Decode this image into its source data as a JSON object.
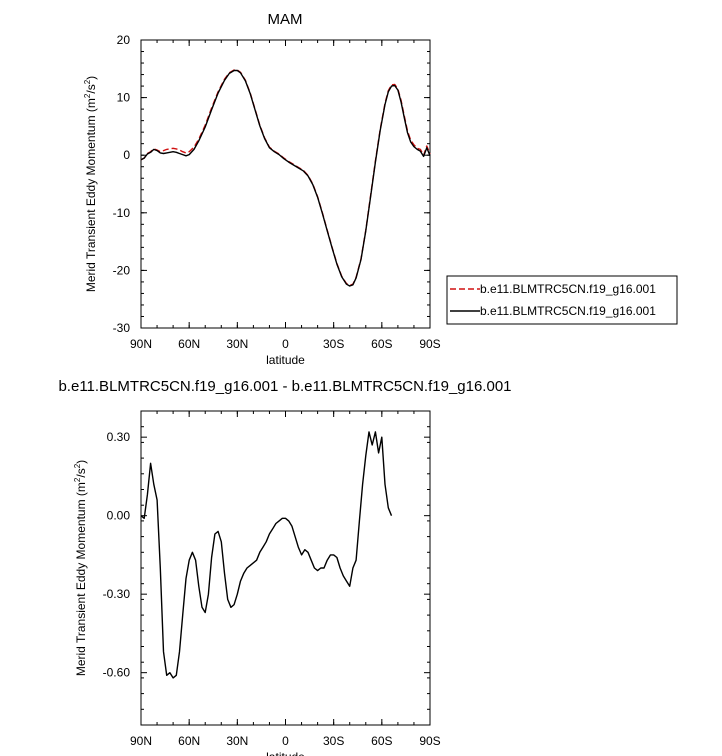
{
  "chart_data": [
    {
      "type": "line",
      "title": "MAM",
      "xlabel": "latitude",
      "ylabel": "Merid Transient Eddy Momentum (m",
      "ylabel_unit_tail": "/s",
      "ylabel_close": ")",
      "ylabel_sup": "2",
      "xlim": [
        90,
        -90
      ],
      "ylim": [
        -30,
        20
      ],
      "yticks": [
        {
          "v": 20,
          "label": "20"
        },
        {
          "v": 10,
          "label": "10"
        },
        {
          "v": 0,
          "label": "0"
        },
        {
          "v": -10,
          "label": "-10"
        },
        {
          "v": -20,
          "label": "-20"
        },
        {
          "v": -30,
          "label": "-30"
        }
      ],
      "xticks": [
        {
          "v": 90,
          "label": "90N"
        },
        {
          "v": 60,
          "label": "60N"
        },
        {
          "v": 30,
          "label": "30N"
        },
        {
          "v": 0,
          "label": "0"
        },
        {
          "v": -30,
          "label": "30S"
        },
        {
          "v": -60,
          "label": "60S"
        },
        {
          "v": -90,
          "label": "90S"
        }
      ],
      "legend_position": "right",
      "series": [
        {
          "name": "b.e11.BLMTRC5CN.f19_g16.001",
          "color": "#d01010",
          "dash": "dashed",
          "points": [
            [
              90,
              -0.8
            ],
            [
              88,
              -0.5
            ],
            [
              86,
              0.3
            ],
            [
              84,
              0.6
            ],
            [
              82,
              1.1
            ],
            [
              80,
              0.9
            ],
            [
              78,
              0.6
            ],
            [
              76,
              0.8
            ],
            [
              74,
              1.0
            ],
            [
              72,
              1.1
            ],
            [
              70,
              1.2
            ],
            [
              68,
              1.1
            ],
            [
              66,
              0.9
            ],
            [
              64,
              0.6
            ],
            [
              62,
              0.4
            ],
            [
              60,
              0.6
            ],
            [
              57,
              1.4
            ],
            [
              54,
              2.8
            ],
            [
              50,
              5.2
            ],
            [
              46,
              8.2
            ],
            [
              42,
              11.0
            ],
            [
              38,
              13.2
            ],
            [
              35,
              14.3
            ],
            [
              32,
              14.8
            ],
            [
              30,
              14.8
            ],
            [
              28,
              14.4
            ],
            [
              25,
              13.0
            ],
            [
              22,
              10.8
            ],
            [
              19,
              8.0
            ],
            [
              16,
              5.2
            ],
            [
              13,
              3.0
            ],
            [
              10,
              1.4
            ],
            [
              7,
              0.7
            ],
            [
              4,
              0.2
            ],
            [
              1,
              -0.5
            ],
            [
              -2,
              -1.1
            ],
            [
              -5,
              -1.6
            ],
            [
              -8,
              -2.1
            ],
            [
              -11,
              -2.6
            ],
            [
              -14,
              -3.5
            ],
            [
              -17,
              -5.0
            ],
            [
              -20,
              -7.2
            ],
            [
              -23,
              -10.0
            ],
            [
              -26,
              -13.0
            ],
            [
              -29,
              -16.0
            ],
            [
              -32,
              -18.8
            ],
            [
              -35,
              -21.0
            ],
            [
              -38,
              -22.3
            ],
            [
              -40,
              -22.6
            ],
            [
              -42,
              -22.4
            ],
            [
              -44,
              -21.2
            ],
            [
              -47,
              -18.0
            ],
            [
              -50,
              -13.0
            ],
            [
              -53,
              -7.0
            ],
            [
              -56,
              -1.0
            ],
            [
              -59,
              4.5
            ],
            [
              -62,
              9.0
            ],
            [
              -64,
              11.2
            ],
            [
              -66,
              12.2
            ],
            [
              -68,
              12.3
            ],
            [
              -70,
              11.5
            ],
            [
              -72,
              9.5
            ],
            [
              -74,
              6.8
            ],
            [
              -76,
              4.2
            ],
            [
              -78,
              2.6
            ],
            [
              -80,
              1.8
            ],
            [
              -82,
              1.2
            ],
            [
              -84,
              1.0
            ],
            [
              -86,
              0.0
            ],
            [
              -88,
              1.6
            ],
            [
              -90,
              0.2
            ]
          ]
        },
        {
          "name": "b.e11.BLMTRC5CN.f19_g16.001",
          "color": "#000000",
          "dash": "solid",
          "points": [
            [
              90,
              -0.8
            ],
            [
              88,
              -0.5
            ],
            [
              86,
              0.2
            ],
            [
              84,
              0.5
            ],
            [
              82,
              1.0
            ],
            [
              80,
              0.8
            ],
            [
              78,
              0.4
            ],
            [
              76,
              0.3
            ],
            [
              74,
              0.4
            ],
            [
              72,
              0.5
            ],
            [
              70,
              0.6
            ],
            [
              68,
              0.5
            ],
            [
              66,
              0.3
            ],
            [
              64,
              0.1
            ],
            [
              62,
              -0.1
            ],
            [
              60,
              0.1
            ],
            [
              57,
              1.0
            ],
            [
              54,
              2.5
            ],
            [
              50,
              4.9
            ],
            [
              46,
              7.9
            ],
            [
              42,
              10.8
            ],
            [
              38,
              13.0
            ],
            [
              35,
              14.2
            ],
            [
              32,
              14.7
            ],
            [
              30,
              14.7
            ],
            [
              28,
              14.3
            ],
            [
              25,
              12.9
            ],
            [
              22,
              10.7
            ],
            [
              19,
              7.9
            ],
            [
              16,
              5.1
            ],
            [
              13,
              2.9
            ],
            [
              10,
              1.3
            ],
            [
              7,
              0.6
            ],
            [
              4,
              0.1
            ],
            [
              1,
              -0.6
            ],
            [
              -2,
              -1.2
            ],
            [
              -5,
              -1.7
            ],
            [
              -8,
              -2.2
            ],
            [
              -11,
              -2.7
            ],
            [
              -14,
              -3.6
            ],
            [
              -17,
              -5.1
            ],
            [
              -20,
              -7.3
            ],
            [
              -23,
              -10.1
            ],
            [
              -26,
              -13.1
            ],
            [
              -29,
              -16.1
            ],
            [
              -32,
              -18.9
            ],
            [
              -35,
              -21.1
            ],
            [
              -38,
              -22.4
            ],
            [
              -40,
              -22.7
            ],
            [
              -42,
              -22.5
            ],
            [
              -44,
              -21.3
            ],
            [
              -47,
              -18.1
            ],
            [
              -50,
              -13.1
            ],
            [
              -53,
              -7.2
            ],
            [
              -56,
              -1.2
            ],
            [
              -59,
              4.3
            ],
            [
              -62,
              8.8
            ],
            [
              -64,
              11.0
            ],
            [
              -66,
              12.0
            ],
            [
              -68,
              12.1
            ],
            [
              -70,
              11.3
            ],
            [
              -72,
              9.2
            ],
            [
              -74,
              6.5
            ],
            [
              -76,
              3.9
            ],
            [
              -78,
              2.3
            ],
            [
              -80,
              1.5
            ],
            [
              -82,
              1.0
            ],
            [
              -84,
              0.7
            ],
            [
              -86,
              -0.2
            ],
            [
              -88,
              1.3
            ],
            [
              -90,
              -0.1
            ]
          ]
        }
      ]
    },
    {
      "type": "line",
      "title": "b.e11.BLMTRC5CN.f19_g16.001 - b.e11.BLMTRC5CN.f19_g16.001",
      "xlabel": "latitude",
      "ylabel": "Merid Transient Eddy Momentum (m",
      "ylabel_unit_tail": "/s",
      "ylabel_close": ")",
      "ylabel_sup": "2",
      "xlim": [
        90,
        -90
      ],
      "ylim": [
        -0.8,
        0.4
      ],
      "yticks": [
        {
          "v": 0.3,
          "label": "0.30"
        },
        {
          "v": 0.0,
          "label": "0.00"
        },
        {
          "v": -0.3,
          "label": "-0.30"
        },
        {
          "v": -0.6,
          "label": "-0.60"
        }
      ],
      "xticks": [
        {
          "v": 90,
          "label": "90N"
        },
        {
          "v": 60,
          "label": "60N"
        },
        {
          "v": 30,
          "label": "30N"
        },
        {
          "v": 0,
          "label": "0"
        },
        {
          "v": -30,
          "label": "30S"
        },
        {
          "v": -60,
          "label": "60S"
        },
        {
          "v": -90,
          "label": "90S"
        }
      ],
      "series": [
        {
          "color": "#000000",
          "dash": "solid",
          "points": [
            [
              90,
              0.0
            ],
            [
              88,
              -0.01
            ],
            [
              86,
              0.08
            ],
            [
              84,
              0.2
            ],
            [
              82,
              0.12
            ],
            [
              80,
              0.06
            ],
            [
              78,
              -0.2
            ],
            [
              76,
              -0.52
            ],
            [
              74,
              -0.61
            ],
            [
              72,
              -0.6
            ],
            [
              70,
              -0.62
            ],
            [
              68,
              -0.61
            ],
            [
              66,
              -0.52
            ],
            [
              64,
              -0.38
            ],
            [
              62,
              -0.24
            ],
            [
              60,
              -0.17
            ],
            [
              58,
              -0.14
            ],
            [
              56,
              -0.17
            ],
            [
              54,
              -0.27
            ],
            [
              52,
              -0.35
            ],
            [
              50,
              -0.37
            ],
            [
              48,
              -0.3
            ],
            [
              46,
              -0.16
            ],
            [
              44,
              -0.07
            ],
            [
              42,
              -0.06
            ],
            [
              40,
              -0.1
            ],
            [
              38,
              -0.22
            ],
            [
              36,
              -0.32
            ],
            [
              34,
              -0.35
            ],
            [
              32,
              -0.34
            ],
            [
              30,
              -0.3
            ],
            [
              28,
              -0.25
            ],
            [
              26,
              -0.22
            ],
            [
              24,
              -0.2
            ],
            [
              22,
              -0.19
            ],
            [
              20,
              -0.18
            ],
            [
              18,
              -0.17
            ],
            [
              16,
              -0.14
            ],
            [
              14,
              -0.12
            ],
            [
              12,
              -0.1
            ],
            [
              10,
              -0.07
            ],
            [
              8,
              -0.05
            ],
            [
              6,
              -0.03
            ],
            [
              4,
              -0.02
            ],
            [
              2,
              -0.01
            ],
            [
              0,
              -0.01
            ],
            [
              -2,
              -0.02
            ],
            [
              -4,
              -0.04
            ],
            [
              -6,
              -0.08
            ],
            [
              -8,
              -0.12
            ],
            [
              -10,
              -0.15
            ],
            [
              -12,
              -0.13
            ],
            [
              -14,
              -0.14
            ],
            [
              -16,
              -0.17
            ],
            [
              -18,
              -0.2
            ],
            [
              -20,
              -0.21
            ],
            [
              -22,
              -0.2
            ],
            [
              -24,
              -0.2
            ],
            [
              -26,
              -0.17
            ],
            [
              -28,
              -0.15
            ],
            [
              -30,
              -0.15
            ],
            [
              -32,
              -0.16
            ],
            [
              -34,
              -0.2
            ],
            [
              -36,
              -0.23
            ],
            [
              -38,
              -0.25
            ],
            [
              -40,
              -0.27
            ],
            [
              -42,
              -0.2
            ],
            [
              -44,
              -0.17
            ],
            [
              -46,
              -0.02
            ],
            [
              -48,
              0.12
            ],
            [
              -50,
              0.23
            ],
            [
              -52,
              0.32
            ],
            [
              -54,
              0.27
            ],
            [
              -56,
              0.32
            ],
            [
              -58,
              0.24
            ],
            [
              -60,
              0.3
            ],
            [
              -62,
              0.12
            ],
            [
              -64,
              0.03
            ],
            [
              -66,
              0.0
            ]
          ]
        }
      ]
    }
  ]
}
